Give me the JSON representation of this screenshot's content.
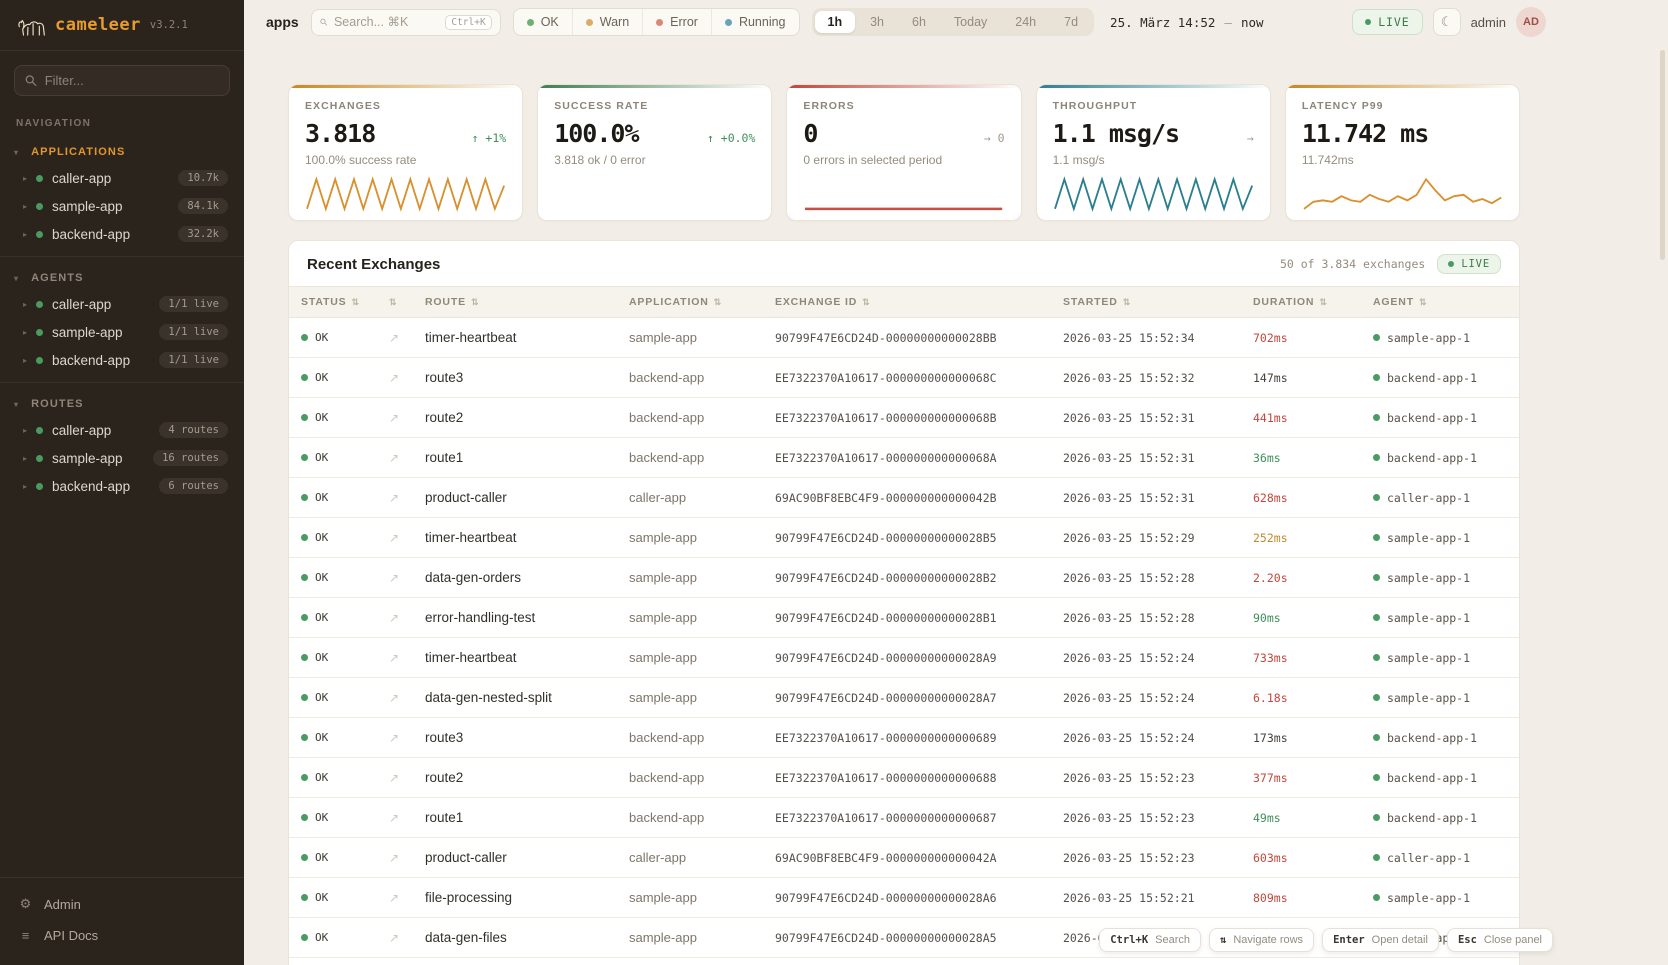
{
  "palette": {
    "brand_orange": "#e1962e",
    "accent_orange": "#c8861f",
    "accent_green": "#3e7d4e",
    "accent_red": "#c0453a",
    "accent_teal": "#2a7f8f",
    "status_green": "#4a9b5f",
    "dur_green": "#3f8f5a",
    "dur_red": "#c2473c",
    "dur_amber": "#bf8a2e",
    "dur_neutral": "#46423a",
    "delta_green": "#3f8f5a",
    "delta_gray": "#a29a8c",
    "dot_ok": "#6fae77",
    "dot_warn": "#d9ad66",
    "dot_error": "#d98876",
    "dot_running": "#6aa3b7"
  },
  "icons": {
    "caret_open": "▾",
    "caret_item": "▸",
    "sort": "⇅",
    "expand": "↗",
    "gear": "⚙",
    "docs": "≡",
    "moon": "☾"
  },
  "sidebar": {
    "logo": {
      "name": "cameleer",
      "version": "v3.2.1"
    },
    "filter_placeholder": "Filter...",
    "nav_label": "NAVIGATION",
    "sections": [
      {
        "label": "APPLICATIONS",
        "accent": true,
        "items": [
          {
            "name": "caller-app",
            "badge": "10.7k"
          },
          {
            "name": "sample-app",
            "badge": "84.1k"
          },
          {
            "name": "backend-app",
            "badge": "32.2k"
          }
        ]
      },
      {
        "label": "AGENTS",
        "accent": false,
        "items": [
          {
            "name": "caller-app",
            "badge": "1/1 live"
          },
          {
            "name": "sample-app",
            "badge": "1/1 live"
          },
          {
            "name": "backend-app",
            "badge": "1/1 live"
          }
        ]
      },
      {
        "label": "ROUTES",
        "accent": false,
        "items": [
          {
            "name": "caller-app",
            "badge": "4 routes"
          },
          {
            "name": "sample-app",
            "badge": "16 routes"
          },
          {
            "name": "backend-app",
            "badge": "6 routes"
          }
        ]
      }
    ],
    "footer": [
      {
        "label": "Admin",
        "icon": "gear"
      },
      {
        "label": "API Docs",
        "icon": "docs"
      }
    ]
  },
  "topbar": {
    "context_label": "apps",
    "search": {
      "placeholder": "Search... ⌘K",
      "shortcut": "Ctrl+K"
    },
    "status_filters": [
      {
        "label": "OK",
        "color": "#6fae77"
      },
      {
        "label": "Warn",
        "color": "#d9ad66"
      },
      {
        "label": "Error",
        "color": "#d98876"
      },
      {
        "label": "Running",
        "color": "#6aa3b7"
      }
    ],
    "time_ranges": [
      {
        "label": "1h",
        "active": true
      },
      {
        "label": "3h",
        "active": false
      },
      {
        "label": "6h",
        "active": false
      },
      {
        "label": "Today",
        "active": false
      },
      {
        "label": "24h",
        "active": false
      },
      {
        "label": "7d",
        "active": false
      }
    ],
    "time_display": {
      "from": "25. März 14:52",
      "separator": "—",
      "to": "now"
    },
    "live_label": "LIVE",
    "user": {
      "name": "admin",
      "initials": "AD"
    }
  },
  "kpi_cards": [
    {
      "label": "EXCHANGES",
      "value": "3.818",
      "delta": "↑ +1%",
      "delta_color": "green",
      "sub": "100.0% success rate",
      "accent": "#c8861f",
      "sparkline": {
        "type": "zigzag",
        "color": "#d9902f",
        "values": [
          2,
          30,
          2,
          30,
          2,
          30,
          2,
          30,
          2,
          30,
          2,
          30,
          2,
          30,
          2,
          30,
          2,
          30,
          2,
          30,
          2,
          24
        ]
      }
    },
    {
      "label": "SUCCESS RATE",
      "value": "100.0%",
      "delta": "↑ +0.0%",
      "delta_color": "green",
      "sub": "3.818 ok / 0 error",
      "accent": "#3e7d4e",
      "sparkline": {
        "type": "none",
        "color": "#3e7d4e",
        "values": []
      }
    },
    {
      "label": "ERRORS",
      "value": "0",
      "delta": "→ 0",
      "delta_color": "gray",
      "sub": "0 errors in selected period",
      "accent": "#c0453a",
      "sparkline": {
        "type": "flat",
        "color": "#c94f44",
        "values": []
      }
    },
    {
      "label": "THROUGHPUT",
      "value": "1.1 msg/s",
      "delta": "→",
      "delta_color": "gray",
      "sub": "1.1 msg/s",
      "accent": "#2a7f8f",
      "sparkline": {
        "type": "zigzag",
        "color": "#2a7f8f",
        "values": [
          2,
          30,
          2,
          30,
          2,
          30,
          2,
          30,
          2,
          30,
          2,
          30,
          2,
          30,
          2,
          30,
          2,
          30,
          2,
          30,
          2,
          24
        ]
      }
    },
    {
      "label": "LATENCY P99",
      "value": "11.742 ms",
      "delta": "",
      "delta_color": "gray",
      "sub": "11.742ms",
      "accent": "#c8861f",
      "sparkline": {
        "type": "line",
        "color": "#d9902f",
        "values": [
          4,
          9,
          10,
          9,
          13,
          10,
          9,
          14,
          11,
          9,
          13,
          10,
          14,
          25,
          17,
          10,
          13,
          14,
          9,
          11,
          8,
          12
        ]
      }
    }
  ],
  "table": {
    "title": "Recent Exchanges",
    "summary": "50 of 3.834 exchanges",
    "live_label": "LIVE",
    "columns": [
      {
        "label": "STATUS"
      },
      {
        "label": ""
      },
      {
        "label": "ROUTE"
      },
      {
        "label": "APPLICATION"
      },
      {
        "label": "EXCHANGE ID"
      },
      {
        "label": "STARTED"
      },
      {
        "label": "DURATION"
      },
      {
        "label": "AGENT"
      }
    ],
    "rows": [
      {
        "status": "OK",
        "route": "timer-heartbeat",
        "application": "sample-app",
        "exchange_id": "90799F47E6CD24D-00000000000028BB",
        "started": "2026-03-25 15:52:34",
        "duration": "702ms",
        "duration_color": "red",
        "agent": "sample-app-1"
      },
      {
        "status": "OK",
        "route": "route3",
        "application": "backend-app",
        "exchange_id": "EE7322370A10617-000000000000068C",
        "started": "2026-03-25 15:52:32",
        "duration": "147ms",
        "duration_color": "neutral",
        "agent": "backend-app-1"
      },
      {
        "status": "OK",
        "route": "route2",
        "application": "backend-app",
        "exchange_id": "EE7322370A10617-000000000000068B",
        "started": "2026-03-25 15:52:31",
        "duration": "441ms",
        "duration_color": "red",
        "agent": "backend-app-1"
      },
      {
        "status": "OK",
        "route": "route1",
        "application": "backend-app",
        "exchange_id": "EE7322370A10617-000000000000068A",
        "started": "2026-03-25 15:52:31",
        "duration": "36ms",
        "duration_color": "green",
        "agent": "backend-app-1"
      },
      {
        "status": "OK",
        "route": "product-caller",
        "application": "caller-app",
        "exchange_id": "69AC90BF8EBC4F9-000000000000042B",
        "started": "2026-03-25 15:52:31",
        "duration": "628ms",
        "duration_color": "red",
        "agent": "caller-app-1"
      },
      {
        "status": "OK",
        "route": "timer-heartbeat",
        "application": "sample-app",
        "exchange_id": "90799F47E6CD24D-00000000000028B5",
        "started": "2026-03-25 15:52:29",
        "duration": "252ms",
        "duration_color": "amber",
        "agent": "sample-app-1"
      },
      {
        "status": "OK",
        "route": "data-gen-orders",
        "application": "sample-app",
        "exchange_id": "90799F47E6CD24D-00000000000028B2",
        "started": "2026-03-25 15:52:28",
        "duration": "2.20s",
        "duration_color": "red",
        "agent": "sample-app-1"
      },
      {
        "status": "OK",
        "route": "error-handling-test",
        "application": "sample-app",
        "exchange_id": "90799F47E6CD24D-00000000000028B1",
        "started": "2026-03-25 15:52:28",
        "duration": "90ms",
        "duration_color": "green",
        "agent": "sample-app-1"
      },
      {
        "status": "OK",
        "route": "timer-heartbeat",
        "application": "sample-app",
        "exchange_id": "90799F47E6CD24D-00000000000028A9",
        "started": "2026-03-25 15:52:24",
        "duration": "733ms",
        "duration_color": "red",
        "agent": "sample-app-1"
      },
      {
        "status": "OK",
        "route": "data-gen-nested-split",
        "application": "sample-app",
        "exchange_id": "90799F47E6CD24D-00000000000028A7",
        "started": "2026-03-25 15:52:24",
        "duration": "6.18s",
        "duration_color": "red",
        "agent": "sample-app-1"
      },
      {
        "status": "OK",
        "route": "route3",
        "application": "backend-app",
        "exchange_id": "EE7322370A10617-0000000000000689",
        "started": "2026-03-25 15:52:24",
        "duration": "173ms",
        "duration_color": "neutral",
        "agent": "backend-app-1"
      },
      {
        "status": "OK",
        "route": "route2",
        "application": "backend-app",
        "exchange_id": "EE7322370A10617-0000000000000688",
        "started": "2026-03-25 15:52:23",
        "duration": "377ms",
        "duration_color": "red",
        "agent": "backend-app-1"
      },
      {
        "status": "OK",
        "route": "route1",
        "application": "backend-app",
        "exchange_id": "EE7322370A10617-0000000000000687",
        "started": "2026-03-25 15:52:23",
        "duration": "49ms",
        "duration_color": "green",
        "agent": "backend-app-1"
      },
      {
        "status": "OK",
        "route": "product-caller",
        "application": "caller-app",
        "exchange_id": "69AC90BF8EBC4F9-000000000000042A",
        "started": "2026-03-25 15:52:23",
        "duration": "603ms",
        "duration_color": "red",
        "agent": "caller-app-1"
      },
      {
        "status": "OK",
        "route": "file-processing",
        "application": "sample-app",
        "exchange_id": "90799F47E6CD24D-00000000000028A6",
        "started": "2026-03-25 15:52:21",
        "duration": "809ms",
        "duration_color": "red",
        "agent": "sample-app-1"
      },
      {
        "status": "OK",
        "route": "data-gen-files",
        "application": "sample-app",
        "exchange_id": "90799F47E6CD24D-00000000000028A5",
        "started": "2026-03-25 1",
        "duration": "",
        "duration_color": "neutral",
        "agent": "sample-app-1"
      }
    ]
  },
  "shortcuts": [
    {
      "key": "Ctrl+K",
      "label": "Search"
    },
    {
      "key": "⇅",
      "label": "Navigate rows"
    },
    {
      "key": "Enter",
      "label": "Open detail"
    },
    {
      "key": "Esc",
      "label": "Close panel"
    }
  ]
}
